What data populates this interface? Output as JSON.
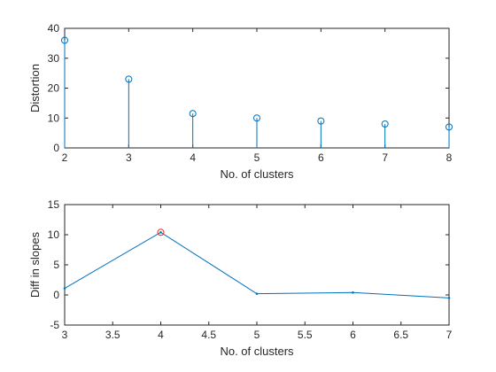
{
  "chart_data": [
    {
      "type": "stem",
      "xlabel": "No. of clusters",
      "ylabel": "Distortion",
      "x": [
        2,
        3,
        4,
        5,
        6,
        7,
        8
      ],
      "y": [
        36,
        23,
        11.5,
        10,
        9,
        8,
        7
      ],
      "xlim": [
        2,
        8
      ],
      "ylim": [
        0,
        40
      ],
      "xticks": [
        "2",
        "3",
        "4",
        "5",
        "6",
        "7",
        "8"
      ],
      "yticks": [
        "0",
        "10",
        "20",
        "30",
        "40"
      ],
      "color": "#0072BD",
      "marker": "circle"
    },
    {
      "type": "line",
      "xlabel": "No. of clusters",
      "ylabel": "Diff in slopes",
      "x": [
        3,
        4,
        5,
        6,
        7
      ],
      "y": [
        1.1,
        10.4,
        0.2,
        0.4,
        -0.5
      ],
      "xlim": [
        3,
        7
      ],
      "ylim": [
        -5,
        15
      ],
      "xticks": [
        "3",
        "3.5",
        "4",
        "4.5",
        "5",
        "5.5",
        "6",
        "6.5",
        "7"
      ],
      "yticks": [
        "-5",
        "0",
        "5",
        "10",
        "15"
      ],
      "color": "#0072BD",
      "highlight": {
        "x": 4,
        "y": 10.4,
        "color": "#D93030",
        "marker": "circle"
      }
    }
  ]
}
